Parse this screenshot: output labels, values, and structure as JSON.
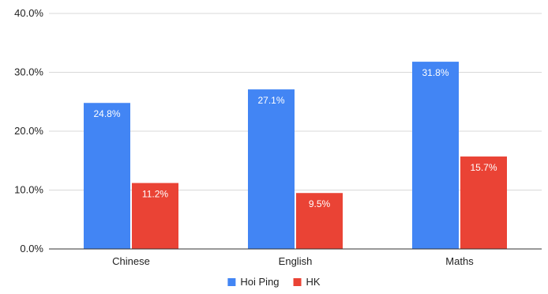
{
  "chart_data": {
    "type": "bar",
    "title": "",
    "xlabel": "",
    "ylabel": "",
    "categories": [
      "Chinese",
      "English",
      "Maths"
    ],
    "series": [
      {
        "name": "Hoi Ping",
        "values": [
          24.8,
          27.1,
          31.8
        ],
        "labels": [
          "24.8%",
          "27.1%",
          "31.8%"
        ],
        "color": "#4285F4"
      },
      {
        "name": "HK",
        "values": [
          11.2,
          9.5,
          15.7
        ],
        "labels": [
          "11.2%",
          "9.5%",
          "15.7%"
        ],
        "color": "#EA4335"
      }
    ],
    "ylim": [
      0,
      40
    ],
    "yticks": [
      0,
      10,
      20,
      30,
      40
    ],
    "ytick_labels": [
      "0.0%",
      "10.0%",
      "20.0%",
      "30.0%",
      "40.0%"
    ],
    "grid": true,
    "legend_position": "bottom"
  }
}
